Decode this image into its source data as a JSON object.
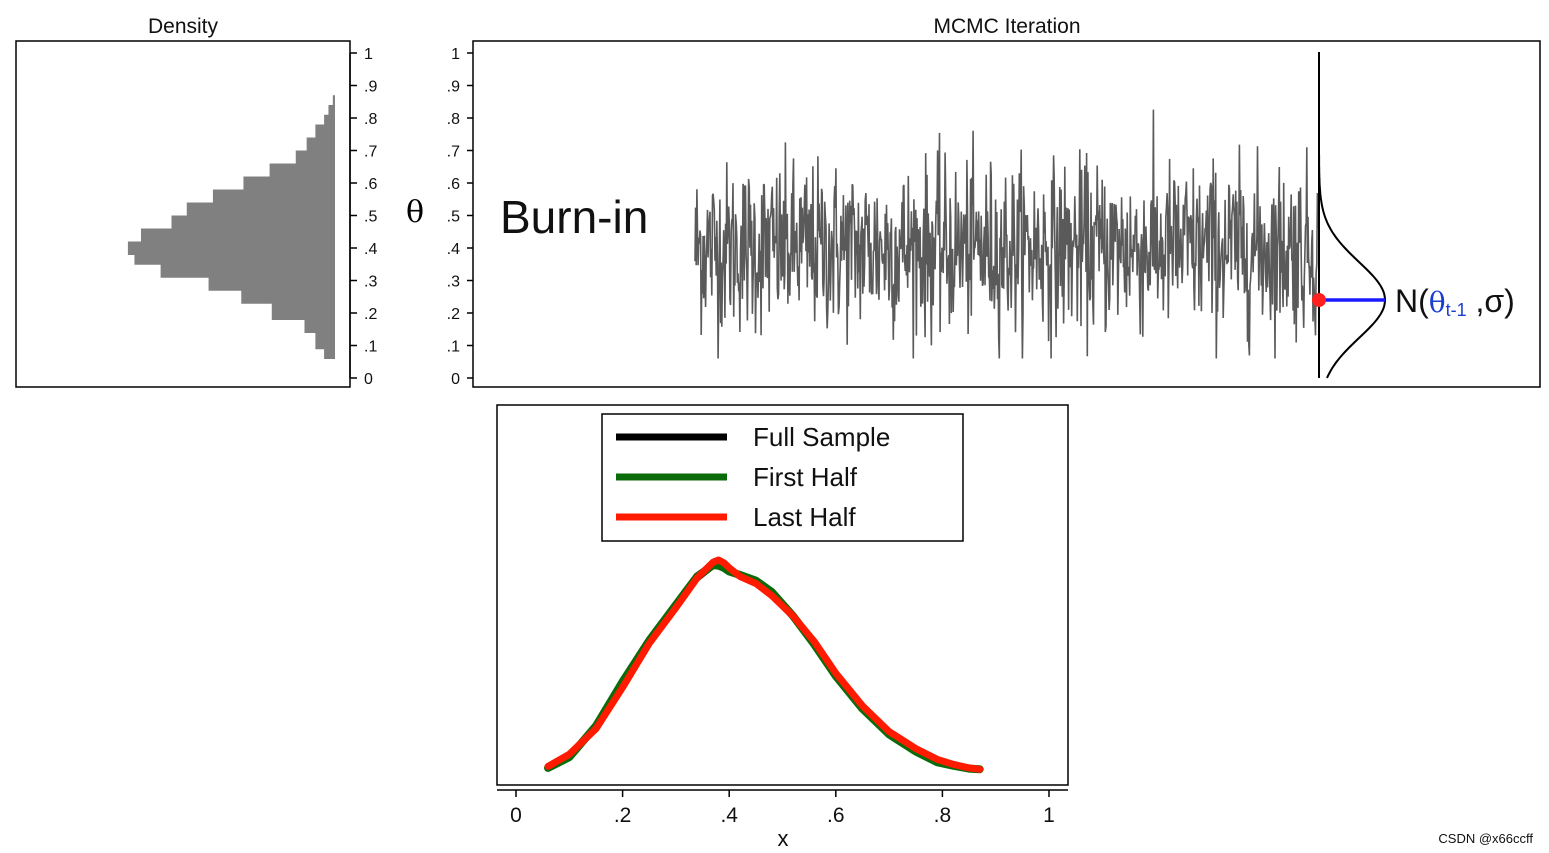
{
  "watermark": "CSDN @x66ccff",
  "chart_data": [
    {
      "type": "bar",
      "orientation": "horizontal",
      "title": "Density",
      "ylim": [
        0,
        1
      ],
      "ytick_labels": [
        "0",
        ".1",
        ".2",
        ".3",
        ".4",
        ".5",
        ".6",
        ".7",
        ".8",
        ".9",
        "1"
      ],
      "ytick_values": [
        0,
        0.1,
        0.2,
        0.3,
        0.4,
        0.5,
        0.6,
        0.7,
        0.8,
        0.9,
        1.0
      ],
      "bins": [
        {
          "lo": 0.06,
          "hi": 0.09,
          "density": 0.05
        },
        {
          "lo": 0.09,
          "hi": 0.14,
          "density": 0.09
        },
        {
          "lo": 0.14,
          "hi": 0.18,
          "density": 0.14
        },
        {
          "lo": 0.18,
          "hi": 0.23,
          "density": 0.29
        },
        {
          "lo": 0.23,
          "hi": 0.27,
          "density": 0.43
        },
        {
          "lo": 0.27,
          "hi": 0.31,
          "density": 0.58
        },
        {
          "lo": 0.31,
          "hi": 0.35,
          "density": 0.8
        },
        {
          "lo": 0.35,
          "hi": 0.38,
          "density": 0.92
        },
        {
          "lo": 0.38,
          "hi": 0.42,
          "density": 0.95
        },
        {
          "lo": 0.42,
          "hi": 0.46,
          "density": 0.89
        },
        {
          "lo": 0.46,
          "hi": 0.5,
          "density": 0.75
        },
        {
          "lo": 0.5,
          "hi": 0.54,
          "density": 0.68
        },
        {
          "lo": 0.54,
          "hi": 0.58,
          "density": 0.56
        },
        {
          "lo": 0.58,
          "hi": 0.62,
          "density": 0.42
        },
        {
          "lo": 0.62,
          "hi": 0.66,
          "density": 0.3
        },
        {
          "lo": 0.66,
          "hi": 0.7,
          "density": 0.18
        },
        {
          "lo": 0.7,
          "hi": 0.74,
          "density": 0.13
        },
        {
          "lo": 0.74,
          "hi": 0.78,
          "density": 0.09
        },
        {
          "lo": 0.78,
          "hi": 0.81,
          "density": 0.05
        },
        {
          "lo": 0.81,
          "hi": 0.84,
          "density": 0.03
        },
        {
          "lo": 0.84,
          "hi": 0.87,
          "density": 0.01
        }
      ],
      "bar_color": "#808080"
    },
    {
      "type": "line",
      "title": "MCMC Iteration",
      "ylabel": "θ",
      "ylim": [
        0,
        1
      ],
      "ytick_labels": [
        "0",
        ".1",
        ".2",
        ".3",
        ".4",
        ".5",
        ".6",
        ".7",
        ".8",
        ".9",
        "1"
      ],
      "ytick_values": [
        0,
        0.1,
        0.2,
        0.3,
        0.4,
        0.5,
        0.6,
        0.7,
        0.8,
        0.9,
        1.0
      ],
      "annotation_burnin": "Burn-in",
      "trace": {
        "mean": 0.4,
        "sd": 0.13,
        "min": 0.06,
        "max": 0.87,
        "n_points": 1000,
        "color": "#5a5a5a"
      },
      "proposal": {
        "current_value": 0.24,
        "label_prefix": "N(",
        "label_theta": "θ",
        "label_sub": "t-1",
        "label_suffix": " ,σ)",
        "point_color": "#ff2020",
        "line_color": "#1a1aff",
        "theta_color": "#1a3fd0"
      }
    },
    {
      "type": "line",
      "xlabel": "x",
      "xlim": [
        -0.03,
        1.03
      ],
      "xtick_labels": [
        "0",
        ".2",
        ".4",
        ".6",
        ".8",
        "1"
      ],
      "xtick_values": [
        0,
        0.2,
        0.4,
        0.6,
        0.8,
        1.0
      ],
      "ylim": [
        0,
        3.4
      ],
      "legend": [
        {
          "label": "Full Sample",
          "color": "#000000"
        },
        {
          "label": "First Half",
          "color": "#0b6b0b"
        },
        {
          "label": "Last Half",
          "color": "#ff1a00"
        }
      ],
      "x": [
        0.06,
        0.1,
        0.15,
        0.2,
        0.25,
        0.3,
        0.34,
        0.37,
        0.38,
        0.39,
        0.4,
        0.42,
        0.45,
        0.48,
        0.52,
        0.56,
        0.6,
        0.65,
        0.7,
        0.75,
        0.79,
        0.82,
        0.85,
        0.87
      ],
      "series": [
        {
          "name": "Full Sample",
          "values": [
            0.04,
            0.2,
            0.6,
            1.2,
            1.8,
            2.3,
            2.68,
            2.86,
            2.89,
            2.87,
            2.82,
            2.74,
            2.65,
            2.48,
            2.18,
            1.78,
            1.34,
            0.88,
            0.52,
            0.28,
            0.13,
            0.07,
            0.03,
            0.01
          ]
        },
        {
          "name": "First Half",
          "values": [
            0.03,
            0.18,
            0.62,
            1.24,
            1.82,
            2.32,
            2.72,
            2.88,
            2.87,
            2.84,
            2.79,
            2.74,
            2.66,
            2.5,
            2.16,
            1.76,
            1.32,
            0.86,
            0.5,
            0.26,
            0.11,
            0.06,
            0.02,
            0.01
          ]
        },
        {
          "name": "Last Half",
          "values": [
            0.05,
            0.22,
            0.58,
            1.16,
            1.78,
            2.28,
            2.7,
            2.92,
            2.95,
            2.91,
            2.84,
            2.72,
            2.62,
            2.45,
            2.16,
            1.8,
            1.36,
            0.9,
            0.54,
            0.3,
            0.15,
            0.08,
            0.03,
            0.01
          ]
        }
      ]
    }
  ]
}
